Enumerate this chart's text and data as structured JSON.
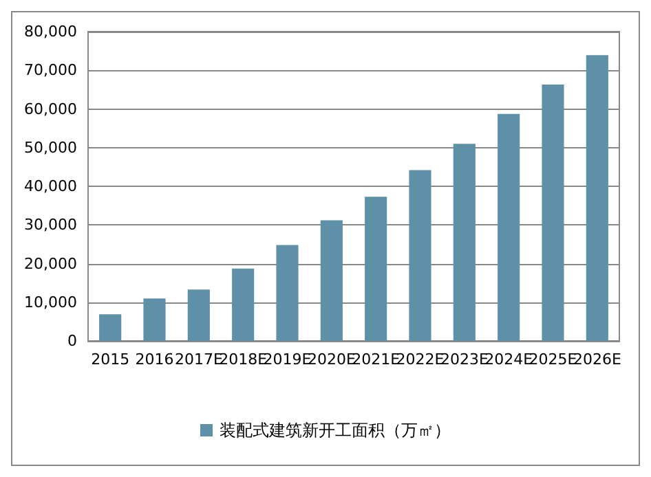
{
  "chart_data": {
    "type": "bar",
    "categories": [
      "2015",
      "2016",
      "2017E",
      "2018E",
      "2019E",
      "2020E",
      "2021E",
      "2022E",
      "2023E",
      "2024E",
      "2025E",
      "2026E"
    ],
    "series": [
      {
        "name": "装配式建筑新开工面积（万㎡）",
        "color": "#5e91a8",
        "values": [
          6900,
          11000,
          13300,
          18700,
          24800,
          31200,
          37300,
          44200,
          51000,
          58700,
          66300,
          73900
        ]
      }
    ],
    "ylim": [
      0,
      80000
    ],
    "yticks": [
      {
        "value": 0,
        "label": "0"
      },
      {
        "value": 10000,
        "label": "10,000"
      },
      {
        "value": 20000,
        "label": "20,000"
      },
      {
        "value": 30000,
        "label": "30,000"
      },
      {
        "value": 40000,
        "label": "40,000"
      },
      {
        "value": 50000,
        "label": "50,000"
      },
      {
        "value": 60000,
        "label": "60,000"
      },
      {
        "value": 70000,
        "label": "70,000"
      },
      {
        "value": 80000,
        "label": "80,000"
      }
    ],
    "grid": "y",
    "legend": "bottom"
  }
}
